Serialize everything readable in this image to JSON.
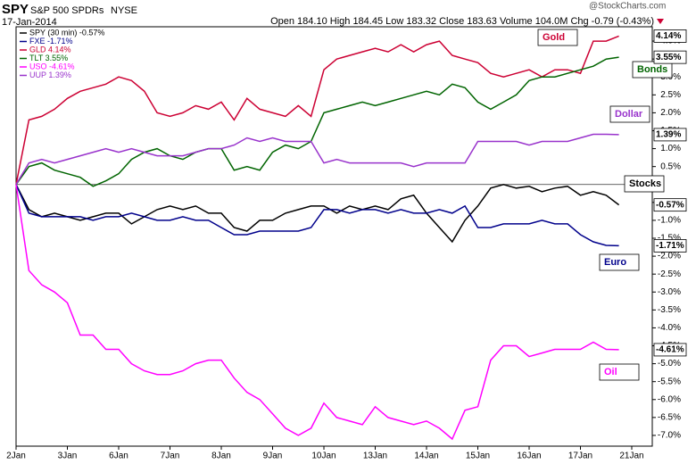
{
  "chart_data": {
    "type": "line",
    "symbol": "SPY",
    "subtitle": "S&P 500 SPDRs",
    "exchange": "NYSE",
    "date": "17-Jan-2014",
    "quote": "Open 184.10 High 184.45 Low 183.32 Close 183.63 Volume 104.0M Chg -0.79 (-0.43%)",
    "watermark": "@StockCharts.com",
    "categories": [
      "2Jan",
      null,
      null,
      null,
      "3Jan",
      null,
      null,
      null,
      "6Jan",
      null,
      null,
      null,
      "7Jan",
      null,
      null,
      null,
      "8Jan",
      null,
      null,
      null,
      "9Jan",
      null,
      null,
      null,
      "10Jan",
      null,
      null,
      null,
      "13Jan",
      null,
      null,
      null,
      "14Jan",
      null,
      null,
      null,
      "15Jan",
      null,
      null,
      null,
      "16Jan",
      null,
      null,
      null,
      "17Jan",
      null,
      null,
      null,
      "21Jan"
    ],
    "ylim": [
      -7.3,
      4.4
    ],
    "zero_line": 0,
    "yticks": [
      {
        "value": 4.0,
        "label": "4.0%"
      },
      {
        "value": 3.5,
        "label": "3.5%"
      },
      {
        "value": 3.0,
        "label": "3.0%"
      },
      {
        "value": 2.5,
        "label": "2.5%"
      },
      {
        "value": 2.0,
        "label": "2.0%"
      },
      {
        "value": 1.5,
        "label": "1.5%"
      },
      {
        "value": 1.0,
        "label": "1.0%"
      },
      {
        "value": 0.5,
        "label": "0.5%"
      },
      {
        "value": -0.5,
        "label": "-0.5%"
      },
      {
        "value": -1.0,
        "label": "-1.0%"
      },
      {
        "value": -1.5,
        "label": "-1.5%"
      },
      {
        "value": -2.0,
        "label": "-2.0%"
      },
      {
        "value": -2.5,
        "label": "-2.5%"
      },
      {
        "value": -3.0,
        "label": "-3.0%"
      },
      {
        "value": -3.5,
        "label": "-3.5%"
      },
      {
        "value": -4.0,
        "label": "-4.0%"
      },
      {
        "value": -4.5,
        "label": "-4.5%"
      },
      {
        "value": -5.0,
        "label": "-5.0%"
      },
      {
        "value": -5.5,
        "label": "-5.5%"
      },
      {
        "value": -6.0,
        "label": "-6.0%"
      },
      {
        "value": -6.5,
        "label": "-6.5%"
      },
      {
        "value": -7.0,
        "label": "-7.0%"
      }
    ],
    "series": [
      {
        "name": "SPY (30 min) -0.57%",
        "color": "#000000",
        "annotation": "Stocks",
        "end_label": "-0.57%",
        "values": [
          0,
          -0.7,
          -0.9,
          -0.8,
          -0.9,
          -1.0,
          -0.9,
          -0.8,
          -0.8,
          -1.1,
          -0.9,
          -0.7,
          -0.6,
          -0.7,
          -0.6,
          -0.8,
          -0.8,
          -1.2,
          -1.3,
          -1.0,
          -1.0,
          -0.8,
          -0.7,
          -0.6,
          -0.6,
          -0.8,
          -0.6,
          -0.7,
          -0.6,
          -0.7,
          -0.4,
          -0.3,
          -0.8,
          -1.2,
          -1.6,
          -1.0,
          -0.6,
          -0.1,
          0.0,
          -0.1,
          -0.05,
          -0.2,
          -0.1,
          -0.05,
          -0.3,
          -0.2,
          -0.3,
          -0.57,
          null
        ]
      },
      {
        "name": "FXE -1.71%",
        "color": "#00008b",
        "annotation": "Euro",
        "end_label": "-1.71%",
        "values": [
          0,
          -0.8,
          -0.9,
          -0.9,
          -0.9,
          -0.9,
          -1.0,
          -0.9,
          -0.9,
          -0.8,
          -0.9,
          -1.0,
          -1.0,
          -0.9,
          -1.0,
          -1.0,
          -1.2,
          -1.4,
          -1.4,
          -1.3,
          -1.3,
          -1.3,
          -1.3,
          -1.2,
          -0.7,
          -0.7,
          -0.8,
          -0.7,
          -0.7,
          -0.8,
          -0.7,
          -0.8,
          -0.8,
          -0.7,
          -0.8,
          -0.6,
          -1.2,
          -1.2,
          -1.1,
          -1.1,
          -1.1,
          -1.0,
          -1.1,
          -1.1,
          -1.4,
          -1.6,
          -1.7,
          -1.71,
          null
        ]
      },
      {
        "name": "GLD 4.14%",
        "color": "#cc0033",
        "annotation": "Gold",
        "end_label": "4.14%",
        "values": [
          0,
          1.8,
          1.9,
          2.1,
          2.4,
          2.6,
          2.7,
          2.8,
          3.0,
          2.9,
          2.6,
          2.0,
          1.9,
          2.0,
          2.2,
          2.1,
          2.3,
          1.8,
          2.4,
          2.1,
          2.0,
          1.9,
          2.2,
          1.9,
          3.2,
          3.5,
          3.6,
          3.7,
          3.8,
          3.7,
          3.9,
          3.7,
          3.9,
          4.0,
          3.6,
          3.5,
          3.4,
          3.1,
          3.0,
          3.1,
          3.2,
          3.0,
          3.2,
          3.2,
          3.1,
          4.0,
          4.0,
          4.14,
          null
        ]
      },
      {
        "name": "TLT 3.55%",
        "color": "#006400",
        "annotation": "Bonds",
        "end_label": "3.55%",
        "values": [
          0,
          0.5,
          0.6,
          0.4,
          0.3,
          0.2,
          -0.05,
          0.1,
          0.3,
          0.7,
          0.9,
          1.0,
          0.8,
          0.7,
          0.9,
          1.0,
          1.0,
          0.4,
          0.5,
          0.4,
          0.9,
          1.1,
          1.0,
          1.2,
          2.0,
          2.1,
          2.2,
          2.3,
          2.2,
          2.3,
          2.4,
          2.5,
          2.6,
          2.5,
          2.8,
          2.7,
          2.3,
          2.1,
          2.3,
          2.5,
          2.9,
          3.0,
          3.0,
          3.1,
          3.2,
          3.3,
          3.5,
          3.55,
          null
        ]
      },
      {
        "name": "USO -4.61%",
        "color": "#ff00ff",
        "annotation": "Oil",
        "end_label": "-4.61%",
        "values": [
          0,
          -2.4,
          -2.8,
          -3.0,
          -3.3,
          -4.2,
          -4.2,
          -4.6,
          -4.6,
          -5.0,
          -5.2,
          -5.3,
          -5.3,
          -5.2,
          -5.0,
          -4.9,
          -4.9,
          -5.4,
          -5.8,
          -6.0,
          -6.4,
          -6.8,
          -7.0,
          -6.8,
          -6.1,
          -6.5,
          -6.6,
          -6.7,
          -6.2,
          -6.5,
          -6.6,
          -6.7,
          -6.6,
          -6.8,
          -7.1,
          -6.3,
          -6.2,
          -4.9,
          -4.5,
          -4.5,
          -4.8,
          -4.7,
          -4.6,
          -4.6,
          -4.6,
          -4.4,
          -4.6,
          -4.61,
          null
        ]
      },
      {
        "name": "UUP 1.39%",
        "color": "#9933cc",
        "annotation": "Dollar",
        "end_label": "1.39%",
        "values": [
          0,
          0.6,
          0.7,
          0.6,
          0.7,
          0.8,
          0.9,
          1.0,
          0.9,
          1.0,
          0.9,
          0.8,
          0.8,
          0.8,
          0.9,
          1.0,
          1.0,
          1.1,
          1.3,
          1.2,
          1.3,
          1.2,
          1.2,
          1.2,
          0.6,
          0.7,
          0.6,
          0.6,
          0.6,
          0.6,
          0.6,
          0.5,
          0.6,
          0.6,
          0.6,
          0.6,
          1.2,
          1.2,
          1.2,
          1.2,
          1.1,
          1.2,
          1.2,
          1.2,
          1.3,
          1.4,
          1.4,
          1.39,
          null
        ]
      }
    ]
  }
}
